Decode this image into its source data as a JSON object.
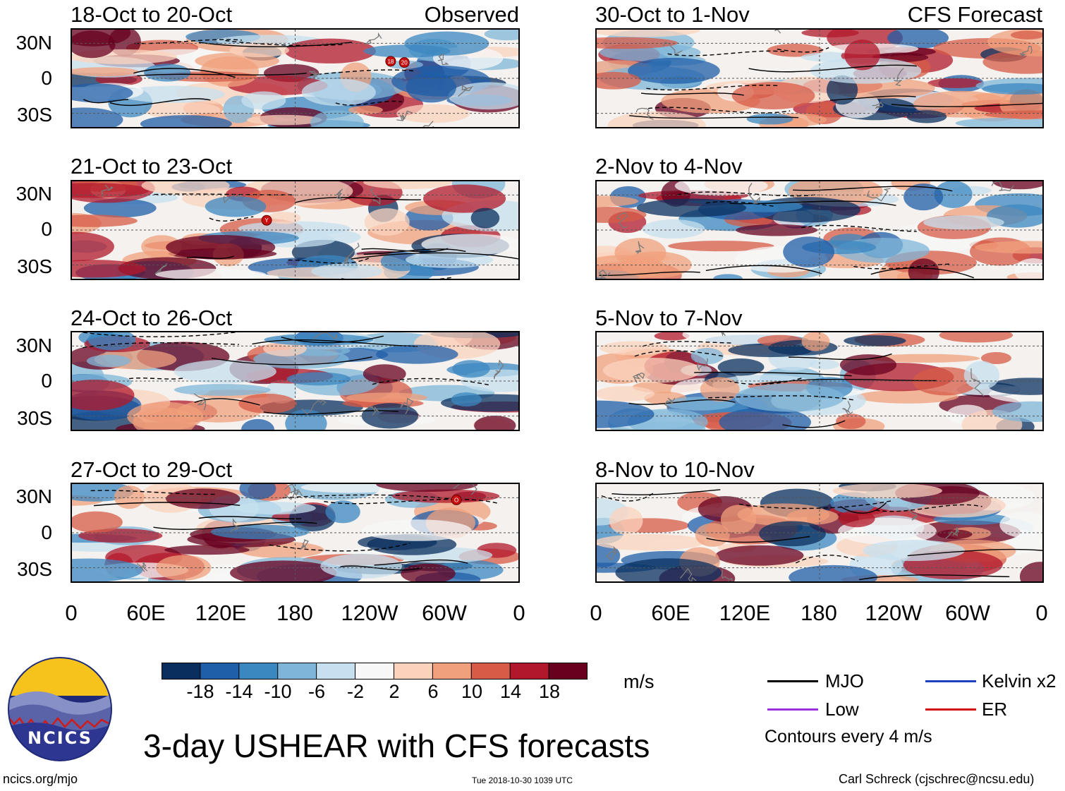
{
  "colors": {
    "scale": [
      "#0a2f5e",
      "#1f5ea8",
      "#3b87c0",
      "#7fb5d8",
      "#c7e0ef",
      "#f7f7f7",
      "#fbd3bd",
      "#f0a07c",
      "#d75b47",
      "#b2182b",
      "#67001f"
    ],
    "mjo": "#000000",
    "kelvin": "#2040c0",
    "low": "#9b30e0",
    "er": "#d01010",
    "coast": "#7a7a7a"
  },
  "panels": {
    "left": [
      {
        "title": "18-Oct to 20-Oct",
        "label": "Observed"
      },
      {
        "title": "21-Oct to 23-Oct",
        "label": ""
      },
      {
        "title": "24-Oct to 26-Oct",
        "label": ""
      },
      {
        "title": "27-Oct to 29-Oct",
        "label": ""
      }
    ],
    "right": [
      {
        "title": "30-Oct to 1-Nov",
        "label": "CFS Forecast"
      },
      {
        "title": "2-Nov to 4-Nov",
        "label": ""
      },
      {
        "title": "5-Nov to 7-Nov",
        "label": ""
      },
      {
        "title": "8-Nov to 10-Nov",
        "label": ""
      }
    ]
  },
  "axes": {
    "lat_labels": [
      "30N",
      "0",
      "30S"
    ],
    "lon_labels": [
      "0",
      "60E",
      "120E",
      "180",
      "120W",
      "60W",
      "0"
    ]
  },
  "colorbar": {
    "ticks": [
      "-18",
      "-14",
      "-10",
      "-6",
      "-2",
      "2",
      "6",
      "10",
      "14",
      "18"
    ],
    "units": "m/s"
  },
  "legend": {
    "mjo": "MJO",
    "kelvin": "Kelvin x2",
    "low": "Low",
    "er": "ER",
    "note": "Contours every 4 m/s"
  },
  "logo_text": "NCICS",
  "title": "3-day USHEAR with CFS forecasts",
  "footer": {
    "url": "ncics.org/mjo",
    "timestamp": "Tue 2018-10-30 1039 UTC",
    "author": "Carl Schreck (cjschrec@ncsu.edu)"
  },
  "storm_markers": [
    {
      "panel": "left-0",
      "lon": 257,
      "lat": 14,
      "label": "18"
    },
    {
      "panel": "left-0",
      "lon": 268,
      "lat": 13,
      "label": "20"
    },
    {
      "panel": "left-1",
      "lon": 157,
      "lat": 8,
      "label": "Y"
    },
    {
      "panel": "left-3",
      "lon": 310,
      "lat": 27,
      "label": "O"
    }
  ]
}
